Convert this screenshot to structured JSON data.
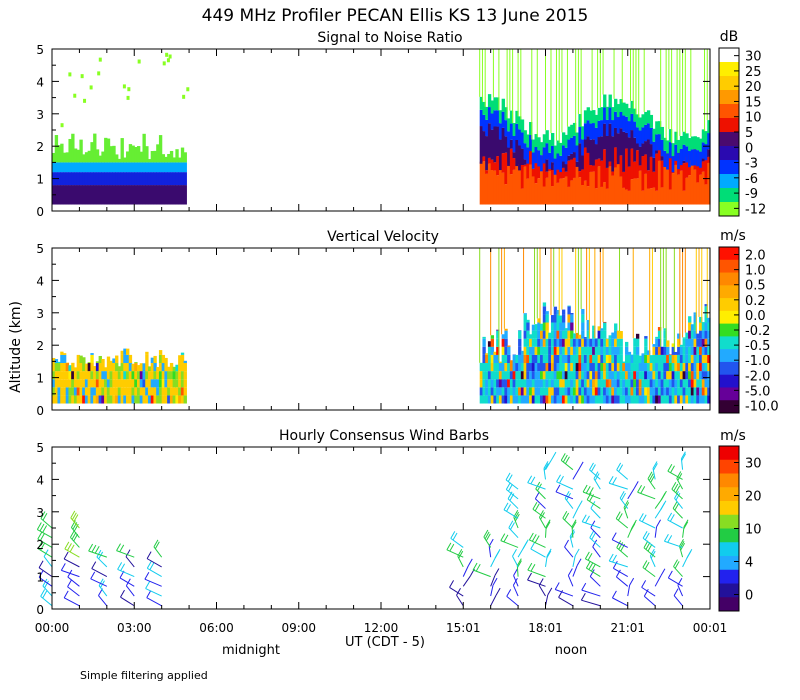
{
  "title": "449 MHz Profiler PECAN Ellis KS 13 June 2015",
  "ylabel": "Altitude (km)",
  "xlabel": "UT  (CDT - 5)",
  "x_ticks": [
    "00:00",
    "03:00",
    "06:00",
    "09:00",
    "12:00",
    "15:01",
    "18:01",
    "21:01",
    "00:01"
  ],
  "local_labels": {
    "midnight": "midnight",
    "noon": "noon"
  },
  "footer": "Simple filtering applied",
  "chart_data": [
    {
      "type": "heatmap",
      "title": "Signal to Noise Ratio",
      "unit": "dB",
      "xlim": [
        0,
        24
      ],
      "ylim": [
        0,
        5
      ],
      "yticks": [
        "0",
        "1",
        "2",
        "3",
        "4",
        "5"
      ],
      "colorbar_labels": [
        "30",
        "25",
        "20",
        "15",
        "10",
        "5",
        "0",
        "-3",
        "-6",
        "-9",
        "-12"
      ],
      "colorbar_colors": [
        "#ffffff",
        "#ffee00",
        "#ffcc00",
        "#ff9900",
        "#ff5500",
        "#ee1100",
        "#4a0a6e",
        "#2a0ab0",
        "#0033ff",
        "#00aaff",
        "#00dd77",
        "#88ff22"
      ],
      "data_segments": [
        {
          "start": 0.0,
          "end": 4.8,
          "top_km": 2.4
        },
        {
          "start": 15.6,
          "end": 24.0,
          "top_km": 5.0
        }
      ]
    },
    {
      "type": "heatmap",
      "title": "Vertical Velocity",
      "unit": "m/s",
      "xlim": [
        0,
        24
      ],
      "ylim": [
        0,
        5
      ],
      "yticks": [
        "0",
        "1",
        "2",
        "3",
        "4",
        "5"
      ],
      "colorbar_labels": [
        "2.0",
        "1.0",
        "0.5",
        "0.2",
        "0.0",
        "-0.2",
        "-0.5",
        "-1.0",
        "-2.0",
        "-5.0",
        "-10.0"
      ],
      "colorbar_colors": [
        "#ff1100",
        "#ff5500",
        "#ff8800",
        "#ffaa00",
        "#ffcc00",
        "#ffee00",
        "#33dd22",
        "#11ddcc",
        "#22aaff",
        "#2255ee",
        "#2211cc",
        "#660099",
        "#330033"
      ],
      "data_segments": [
        {
          "start": 0.0,
          "end": 4.8,
          "top_km": 2.2
        },
        {
          "start": 15.6,
          "end": 24.0,
          "top_km": 5.0
        }
      ]
    },
    {
      "type": "wind_barbs",
      "title": "Hourly Consensus Wind Barbs",
      "unit": "m/s",
      "xlim": [
        0,
        24
      ],
      "ylim": [
        0,
        5
      ],
      "yticks": [
        "0",
        "1",
        "2",
        "3",
        "4",
        "5"
      ],
      "colorbar_labels": [
        "30",
        "20",
        "10",
        "4",
        "0"
      ],
      "colorbar_colors": [
        "#ee0000",
        "#ff4400",
        "#ff8800",
        "#ffaa00",
        "#ffcc00",
        "#88dd22",
        "#22cc44",
        "#11ccee",
        "#22aaff",
        "#2222ee",
        "#22119a",
        "#440066"
      ],
      "hours": [
        0,
        1,
        2,
        3,
        4,
        15,
        16,
        17,
        18,
        19,
        20,
        21,
        22,
        23
      ]
    }
  ]
}
